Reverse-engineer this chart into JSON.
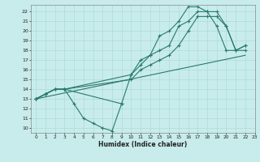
{
  "xlabel": "Humidex (Indice chaleur)",
  "bg_color": "#c8ecec",
  "grid_color": "#b0d8d8",
  "line_color": "#2a7a6a",
  "xlim": [
    -0.5,
    23
  ],
  "ylim": [
    9.5,
    22.7
  ],
  "xticks": [
    0,
    1,
    2,
    3,
    4,
    5,
    6,
    7,
    8,
    9,
    10,
    11,
    12,
    13,
    14,
    15,
    16,
    17,
    18,
    19,
    20,
    21,
    22,
    23
  ],
  "yticks": [
    10,
    11,
    12,
    13,
    14,
    15,
    16,
    17,
    18,
    19,
    20,
    21,
    22
  ],
  "line1_x": [
    0,
    1,
    2,
    3,
    4,
    5,
    6,
    7,
    8,
    9
  ],
  "line1_y": [
    13.0,
    13.5,
    14.0,
    14.0,
    12.5,
    11.0,
    10.5,
    10.0,
    9.7,
    12.5
  ],
  "line2_x": [
    0,
    1,
    2,
    3,
    9,
    10,
    11,
    12,
    13,
    14,
    15,
    16,
    17,
    18,
    19,
    20,
    21,
    22
  ],
  "line2_y": [
    13.0,
    13.5,
    14.0,
    14.0,
    12.5,
    15.5,
    17.0,
    17.5,
    19.5,
    20.0,
    21.0,
    22.5,
    22.5,
    22.0,
    20.5,
    18.0,
    18.0,
    18.5
  ],
  "line3_x": [
    0,
    22
  ],
  "line3_y": [
    13.0,
    17.5
  ],
  "line4_x": [
    0,
    1,
    2,
    3,
    10,
    11,
    12,
    13,
    14,
    15,
    16,
    17,
    18,
    19,
    20,
    21,
    22
  ],
  "line4_y": [
    13.0,
    13.5,
    14.0,
    14.0,
    15.5,
    16.5,
    17.5,
    18.0,
    18.5,
    20.5,
    21.0,
    22.0,
    22.0,
    22.0,
    20.5,
    18.0,
    18.0
  ],
  "line5_x": [
    0,
    1,
    2,
    3,
    10,
    11,
    12,
    13,
    14,
    15,
    16,
    17,
    18,
    19,
    20,
    21,
    22
  ],
  "line5_y": [
    13.0,
    13.5,
    14.0,
    14.0,
    15.0,
    16.0,
    16.5,
    17.0,
    17.5,
    18.5,
    20.0,
    21.5,
    21.5,
    21.5,
    20.5,
    18.0,
    18.5
  ]
}
